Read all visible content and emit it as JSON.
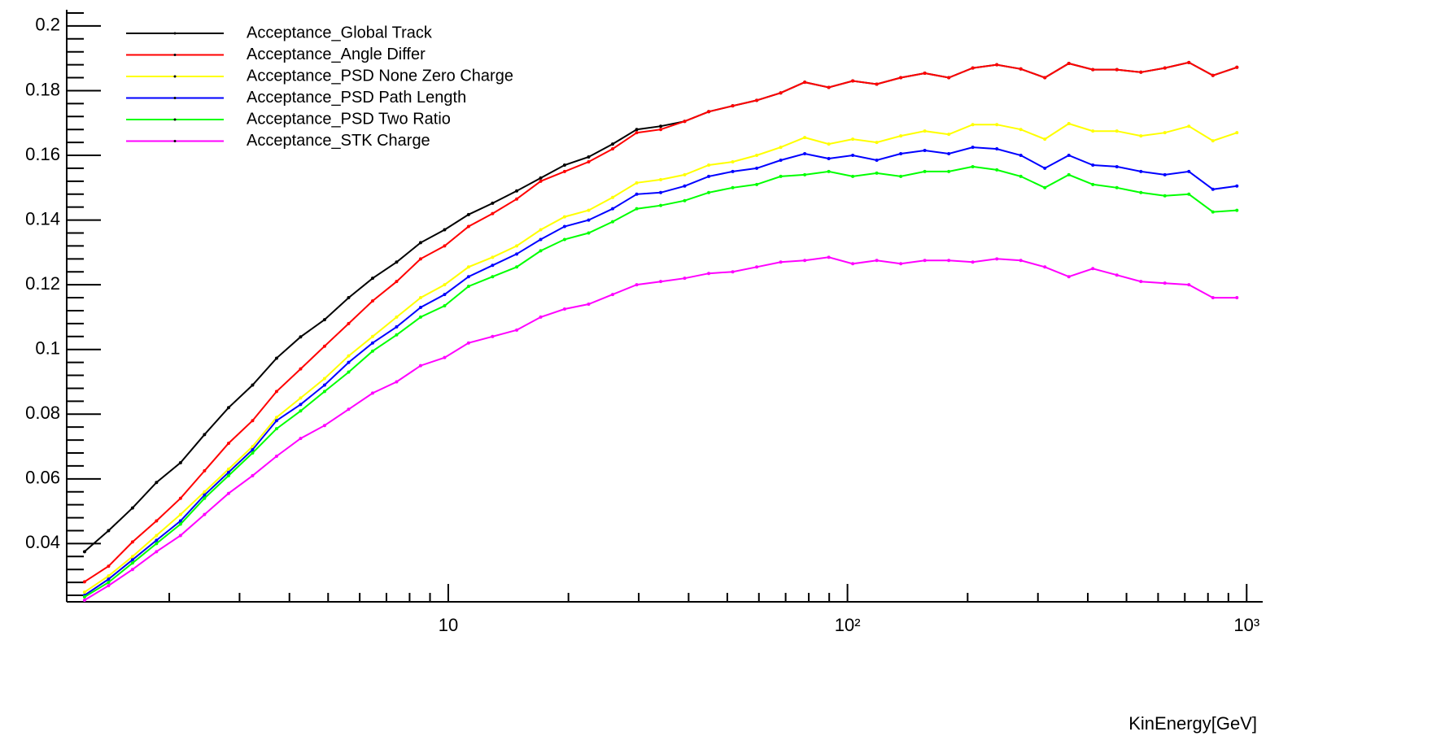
{
  "chart_data": {
    "type": "line",
    "x_label": "KinEnergy[GeV]",
    "x": [
      1.227,
      1.409,
      1.618,
      1.858,
      2.134,
      2.451,
      2.816,
      3.234,
      3.714,
      4.266,
      4.899,
      5.627,
      6.463,
      7.422,
      8.524,
      9.79,
      11.24,
      12.91,
      14.84,
      17.04,
      19.56,
      22.47,
      25.81,
      29.65,
      34.05,
      39.1,
      44.92,
      51.59,
      59.25,
      68.05,
      78.16,
      89.77,
      103.1,
      118.4,
      136.0,
      156.2,
      179.4,
      206.0,
      236.7,
      271.8,
      312.2,
      358.6,
      411.8,
      473.0,
      543.3,
      623.9,
      716.6,
      823.1,
      945.3
    ],
    "series": [
      {
        "name": "Acceptance_Global Track",
        "color": "#000000",
        "values": [
          0.0375,
          0.044,
          0.051,
          0.0589,
          0.065,
          0.0737,
          0.082,
          0.089,
          0.0973,
          0.1039,
          0.1092,
          0.116,
          0.122,
          0.127,
          0.133,
          0.137,
          0.1417,
          0.1452,
          0.149,
          0.153,
          0.157,
          0.1595,
          0.1635,
          0.168,
          0.169,
          0.1705,
          0.1735,
          0.1753,
          0.177,
          0.1793,
          0.1826,
          0.181,
          0.183,
          0.182,
          0.184,
          0.1854,
          0.184,
          0.187,
          0.188,
          0.1867,
          0.184,
          0.1884,
          0.1865,
          0.1865,
          0.1857,
          0.187,
          0.1887,
          0.1847,
          0.1872
        ]
      },
      {
        "name": "Acceptance_Angle Differ",
        "color": "#ff0000",
        "values": [
          0.0282,
          0.033,
          0.0405,
          0.047,
          0.054,
          0.0625,
          0.071,
          0.078,
          0.087,
          0.094,
          0.101,
          0.108,
          0.115,
          0.121,
          0.128,
          0.132,
          0.138,
          0.142,
          0.1465,
          0.152,
          0.155,
          0.158,
          0.162,
          0.167,
          0.168,
          0.1705,
          0.1735,
          0.1753,
          0.177,
          0.1793,
          0.1826,
          0.181,
          0.183,
          0.182,
          0.184,
          0.1854,
          0.184,
          0.187,
          0.188,
          0.1867,
          0.184,
          0.1884,
          0.1865,
          0.1865,
          0.1857,
          0.187,
          0.1887,
          0.1847,
          0.1872
        ]
      },
      {
        "name": "Acceptance_PSD None Zero Charge",
        "color": "#ffff00",
        "values": [
          0.025,
          0.03,
          0.036,
          0.0425,
          0.049,
          0.056,
          0.063,
          0.07,
          0.079,
          0.085,
          0.091,
          0.098,
          0.104,
          0.11,
          0.116,
          0.12,
          0.1255,
          0.1285,
          0.132,
          0.137,
          0.141,
          0.143,
          0.147,
          0.1515,
          0.1525,
          0.154,
          0.157,
          0.158,
          0.16,
          0.1625,
          0.1655,
          0.1635,
          0.165,
          0.164,
          0.166,
          0.1675,
          0.1665,
          0.1695,
          0.1695,
          0.168,
          0.165,
          0.1698,
          0.1675,
          0.1675,
          0.166,
          0.167,
          0.169,
          0.1645,
          0.167
        ]
      },
      {
        "name": "Acceptance_PSD Path Length",
        "color": "#0000ff",
        "values": [
          0.024,
          0.029,
          0.035,
          0.041,
          0.047,
          0.055,
          0.062,
          0.069,
          0.078,
          0.083,
          0.089,
          0.096,
          0.102,
          0.107,
          0.113,
          0.117,
          0.1225,
          0.126,
          0.1295,
          0.134,
          0.138,
          0.14,
          0.1435,
          0.148,
          0.1485,
          0.1505,
          0.1535,
          0.155,
          0.156,
          0.1585,
          0.1605,
          0.159,
          0.16,
          0.1585,
          0.1605,
          0.1615,
          0.1605,
          0.1625,
          0.162,
          0.16,
          0.156,
          0.16,
          0.157,
          0.1565,
          0.155,
          0.154,
          0.155,
          0.1495,
          0.1505
        ]
      },
      {
        "name": "Acceptance_PSD Two Ratio",
        "color": "#00ff00",
        "values": [
          0.0235,
          0.028,
          0.034,
          0.04,
          0.046,
          0.054,
          0.061,
          0.068,
          0.0755,
          0.081,
          0.087,
          0.093,
          0.0995,
          0.1045,
          0.11,
          0.1135,
          0.1195,
          0.1225,
          0.1255,
          0.1305,
          0.134,
          0.136,
          0.1395,
          0.1435,
          0.1445,
          0.146,
          0.1485,
          0.15,
          0.151,
          0.1535,
          0.154,
          0.155,
          0.1535,
          0.1545,
          0.1535,
          0.155,
          0.155,
          0.1565,
          0.1555,
          0.1535,
          0.15,
          0.154,
          0.151,
          0.15,
          0.1485,
          0.1475,
          0.148,
          0.1425,
          0.143
        ]
      },
      {
        "name": "Acceptance_STK Charge",
        "color": "#ff00ff",
        "values": [
          0.0225,
          0.027,
          0.032,
          0.0375,
          0.0425,
          0.049,
          0.0555,
          0.061,
          0.067,
          0.0725,
          0.0765,
          0.0815,
          0.0865,
          0.09,
          0.095,
          0.0975,
          0.102,
          0.104,
          0.106,
          0.11,
          0.1125,
          0.114,
          0.117,
          0.12,
          0.121,
          0.122,
          0.1235,
          0.124,
          0.1255,
          0.127,
          0.1275,
          0.1285,
          0.1265,
          0.1275,
          0.1265,
          0.1275,
          0.1275,
          0.127,
          0.128,
          0.1275,
          0.1255,
          0.1225,
          0.125,
          0.123,
          0.121,
          0.1205,
          0.12,
          0.116,
          0.116
        ]
      }
    ],
    "xlog": true,
    "xlim": [
      1.107,
      1097
    ],
    "xticks": [
      10,
      {
        "value": 100,
        "label": "10²"
      },
      {
        "value": 1000,
        "label": "10³"
      }
    ],
    "xminorticks": [
      2,
      3,
      4,
      5,
      6,
      7,
      8,
      9,
      20,
      30,
      40,
      50,
      60,
      70,
      80,
      90,
      200,
      300,
      400,
      500,
      600,
      700,
      800,
      900
    ],
    "ylim": [
      0.022,
      0.205
    ],
    "yticks": [
      0.04,
      0.06,
      0.08,
      0.1,
      0.12,
      0.14,
      0.16,
      0.18,
      0.2
    ],
    "yminorticks": [
      0.024,
      0.028,
      0.032,
      0.036,
      0.044,
      0.048,
      0.052,
      0.056,
      0.064,
      0.068,
      0.072,
      0.076,
      0.084,
      0.088,
      0.092,
      0.096,
      0.104,
      0.108,
      0.112,
      0.116,
      0.124,
      0.128,
      0.132,
      0.136,
      0.144,
      0.148,
      0.152,
      0.156,
      0.164,
      0.168,
      0.172,
      0.176,
      0.184,
      0.188,
      0.192,
      0.196,
      0.204
    ],
    "legend": "top-left"
  }
}
